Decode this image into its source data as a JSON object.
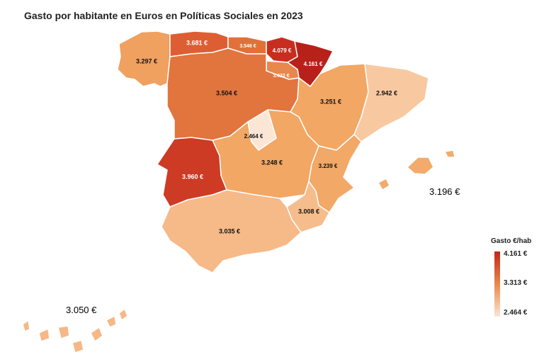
{
  "title": "Gasto por habitante en Euros en Políticas Sociales en 2023",
  "regions": [
    {
      "name": "Galicia",
      "value": 3297,
      "label": "3.297 €",
      "color": "#f0a05f"
    },
    {
      "name": "Asturias",
      "value": 3681,
      "label": "3.681 €",
      "color": "#de5e33"
    },
    {
      "name": "Cantabria",
      "value": 3546,
      "label": "3.546 €",
      "color": "#e27039"
    },
    {
      "name": "País Vasco",
      "value": 4079,
      "label": "4.079 €",
      "color": "#c72e1f"
    },
    {
      "name": "Navarra",
      "value": 4161,
      "label": "4.161 €",
      "color": "#b8211a"
    },
    {
      "name": "La Rioja",
      "value": 3422,
      "label": "3.422 €",
      "color": "#e8884c"
    },
    {
      "name": "Castilla y León",
      "value": 3504,
      "label": "3.504 €",
      "color": "#e2743e"
    },
    {
      "name": "Aragón",
      "value": 3251,
      "label": "3.251 €",
      "color": "#f2a764"
    },
    {
      "name": "Cataluña",
      "value": 2942,
      "label": "2.942 €",
      "color": "#f8c9a1"
    },
    {
      "name": "Madrid",
      "value": 2464,
      "label": "2.464 €",
      "color": "#fbe6d6"
    },
    {
      "name": "Castilla-La Mancha",
      "value": 3248,
      "label": "3.248 €",
      "color": "#f2a764"
    },
    {
      "name": "Comunidad Valenciana",
      "value": 3239,
      "label": "3.239 €",
      "color": "#f2a866"
    },
    {
      "name": "Extremadura",
      "value": 3960,
      "label": "3.960 €",
      "color": "#cd3b25"
    },
    {
      "name": "Murcia",
      "value": 3008,
      "label": "3.008 €",
      "color": "#f6bd8c"
    },
    {
      "name": "Andalucía",
      "value": 3035,
      "label": "3.035 €",
      "color": "#f6b988"
    },
    {
      "name": "Illes Balears",
      "value": 3196,
      "label": "3.196 €",
      "color": "#f2ab6c"
    },
    {
      "name": "Canarias",
      "value": 3050,
      "label": "3.050 €",
      "color": "#f5b886"
    }
  ],
  "legend": {
    "title": "Gasto €/hab",
    "max_label": "4.161 €",
    "mid_label": "3.313 €",
    "min_label": "2.464 €",
    "color_max": "#c0271a",
    "color_mid": "#e8894c",
    "color_min": "#fbe6d6"
  }
}
